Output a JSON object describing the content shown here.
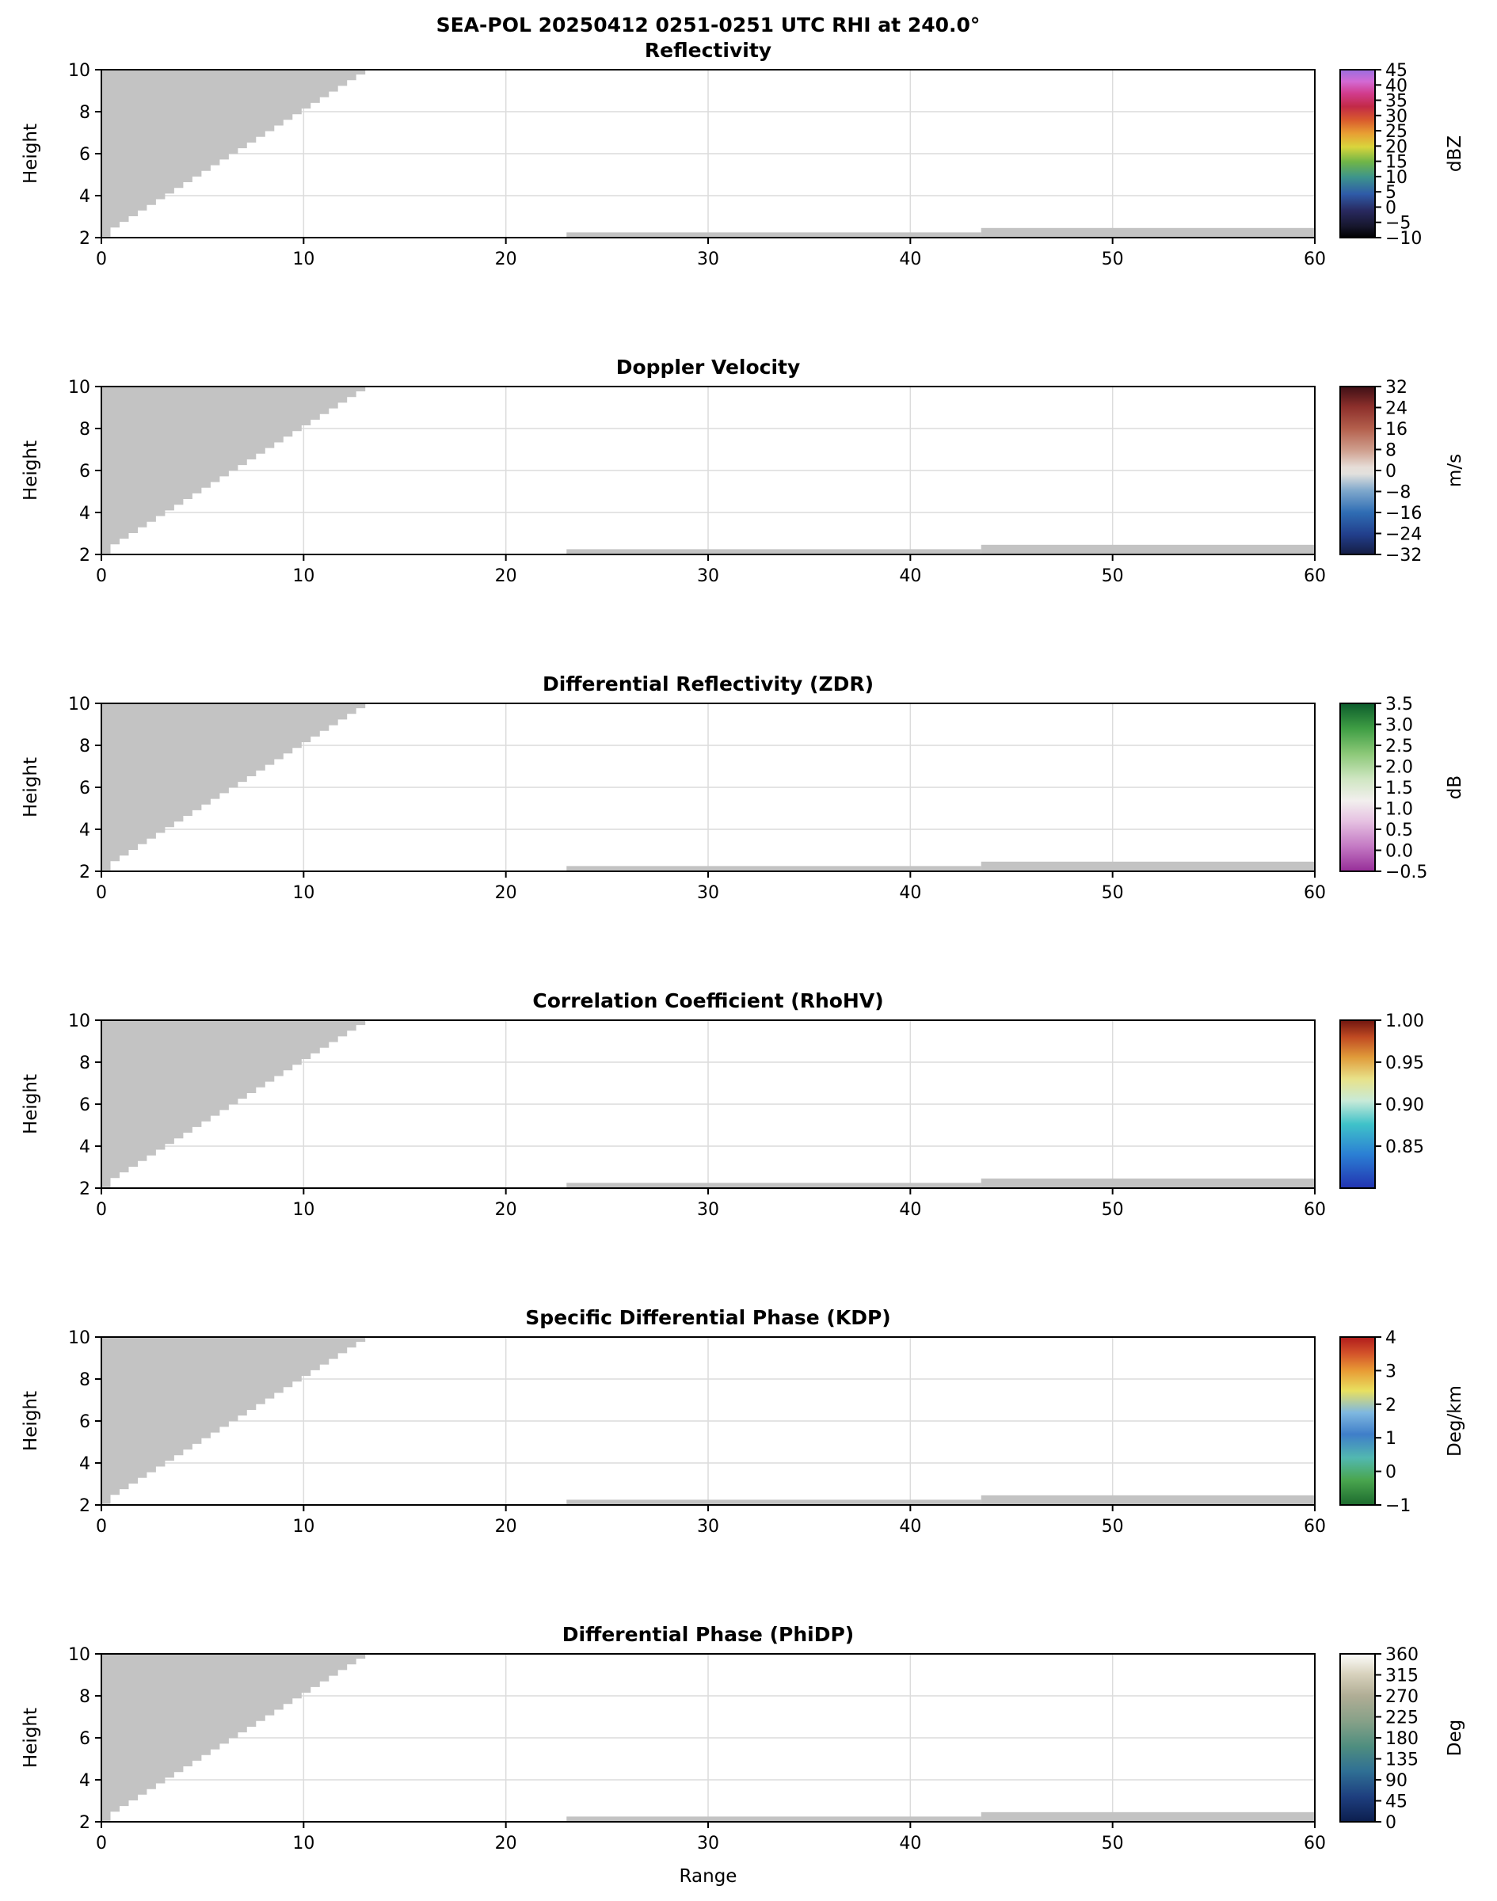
{
  "chart_data": {
    "type": "heatmap",
    "suptitle": "SEA-POL 20250412 0251-0251 UTC RHI at 240.0°",
    "xlabel": "Range",
    "ylabel": "Height",
    "xlim": [
      0,
      60
    ],
    "ylim": [
      2,
      10
    ],
    "xticks": [
      0,
      10,
      20,
      30,
      40,
      50,
      60
    ],
    "yticks": [
      2,
      4,
      6,
      8,
      10
    ],
    "grid": true,
    "note": "Six stacked RHI panels; only gray masked/no-echo regions are visible (upper-left wedge plus two thin low-level strips), no colored echo data present in any panel.",
    "mask": {
      "color": "#c3c3c3",
      "wedge": {
        "x0": 0,
        "dx": 0.45,
        "y_bottom": [
          2.05,
          2.48,
          2.75,
          3.02,
          3.29,
          3.56,
          3.83,
          4.1,
          4.37,
          4.64,
          4.91,
          5.18,
          5.45,
          5.72,
          5.99,
          6.26,
          6.53,
          6.8,
          7.07,
          7.34,
          7.61,
          7.88,
          8.15,
          8.42,
          8.69,
          8.96,
          9.23,
          9.5,
          9.77
        ]
      },
      "strips": [
        {
          "x": [
            23,
            43.5
          ],
          "y": [
            2.02,
            2.25
          ]
        },
        {
          "x": [
            43.5,
            60
          ],
          "y": [
            2.02,
            2.46
          ]
        }
      ]
    },
    "panels": [
      {
        "title": "Reflectivity",
        "units": "dBZ",
        "vmin": -10,
        "vmax": 45,
        "cb_ticks": [
          {
            "label": "45",
            "v": 45
          },
          {
            "label": "40",
            "v": 40
          },
          {
            "label": "35",
            "v": 35
          },
          {
            "label": "30",
            "v": 30
          },
          {
            "label": "25",
            "v": 25
          },
          {
            "label": "20",
            "v": 20
          },
          {
            "label": "15",
            "v": 15
          },
          {
            "label": "10",
            "v": 10
          },
          {
            "label": "5",
            "v": 5
          },
          {
            "label": "0",
            "v": 0
          },
          {
            "label": "−5",
            "v": -5
          },
          {
            "label": "−10",
            "v": -10
          }
        ],
        "cmap": [
          [
            0.0,
            "#000000"
          ],
          [
            0.07,
            "#17172e"
          ],
          [
            0.16,
            "#28295f"
          ],
          [
            0.26,
            "#2f5ba8"
          ],
          [
            0.36,
            "#3d948c"
          ],
          [
            0.45,
            "#6fb548"
          ],
          [
            0.54,
            "#d9d53c"
          ],
          [
            0.62,
            "#e89f33"
          ],
          [
            0.7,
            "#d95b2d"
          ],
          [
            0.78,
            "#c22a47"
          ],
          [
            0.86,
            "#d23c8e"
          ],
          [
            0.93,
            "#d36ad4"
          ],
          [
            1.0,
            "#9a6ee0"
          ]
        ]
      },
      {
        "title": "Doppler Velocity",
        "units": "m/s",
        "vmin": -32,
        "vmax": 32,
        "cb_ticks": [
          {
            "label": "32",
            "v": 32
          },
          {
            "label": "24",
            "v": 24
          },
          {
            "label": "16",
            "v": 16
          },
          {
            "label": "8",
            "v": 8
          },
          {
            "label": "0",
            "v": 0
          },
          {
            "label": "−8",
            "v": -8
          },
          {
            "label": "−16",
            "v": -16
          },
          {
            "label": "−24",
            "v": -24
          },
          {
            "label": "−32",
            "v": -32
          }
        ],
        "cmap": [
          [
            0.0,
            "#151d44"
          ],
          [
            0.12,
            "#223f8c"
          ],
          [
            0.25,
            "#2f6db4"
          ],
          [
            0.38,
            "#7fa8cc"
          ],
          [
            0.48,
            "#e2e0dd"
          ],
          [
            0.52,
            "#e6ddd7"
          ],
          [
            0.62,
            "#cf9f8e"
          ],
          [
            0.75,
            "#b35f4c"
          ],
          [
            0.88,
            "#8c2f2b"
          ],
          [
            1.0,
            "#3e0f15"
          ]
        ]
      },
      {
        "title": "Differential Reflectivity (ZDR)",
        "units": "dB",
        "vmin": -0.5,
        "vmax": 3.5,
        "cb_ticks": [
          {
            "label": "3.5",
            "v": 3.5
          },
          {
            "label": "3.0",
            "v": 3.0
          },
          {
            "label": "2.5",
            "v": 2.5
          },
          {
            "label": "2.0",
            "v": 2.0
          },
          {
            "label": "1.5",
            "v": 1.5
          },
          {
            "label": "1.0",
            "v": 1.0
          },
          {
            "label": "0.5",
            "v": 0.5
          },
          {
            "label": "0.0",
            "v": 0.0
          },
          {
            "label": "−0.5",
            "v": -0.5
          }
        ],
        "cmap": [
          [
            0.0,
            "#962d98"
          ],
          [
            0.15,
            "#c47ac4"
          ],
          [
            0.3,
            "#e6c2e2"
          ],
          [
            0.42,
            "#f2efee"
          ],
          [
            0.55,
            "#cfe6c2"
          ],
          [
            0.7,
            "#8cc878"
          ],
          [
            0.85,
            "#3f9e44"
          ],
          [
            1.0,
            "#0c5c2c"
          ]
        ]
      },
      {
        "title": "Correlation Coefficient (RhoHV)",
        "units": "",
        "vmin": 0.8,
        "vmax": 1.0,
        "cb_ticks": [
          {
            "label": "1.00",
            "v": 1.0
          },
          {
            "label": "0.95",
            "v": 0.95
          },
          {
            "label": "0.90",
            "v": 0.9
          },
          {
            "label": "0.85",
            "v": 0.85
          }
        ],
        "cmap": [
          [
            0.0,
            "#2233b0"
          ],
          [
            0.2,
            "#2b7fd4"
          ],
          [
            0.38,
            "#3fc2c9"
          ],
          [
            0.52,
            "#c8ead8"
          ],
          [
            0.65,
            "#e8e28a"
          ],
          [
            0.78,
            "#e09b3a"
          ],
          [
            0.9,
            "#c04a22"
          ],
          [
            1.0,
            "#701610"
          ]
        ]
      },
      {
        "title": "Specific Differential Phase (KDP)",
        "units": "Deg/km",
        "vmin": -1,
        "vmax": 4,
        "cb_ticks": [
          {
            "label": "4",
            "v": 4
          },
          {
            "label": "3",
            "v": 3
          },
          {
            "label": "2",
            "v": 2
          },
          {
            "label": "1",
            "v": 1
          },
          {
            "label": "0",
            "v": 0
          },
          {
            "label": "−1",
            "v": -1
          }
        ],
        "cmap": [
          [
            0.0,
            "#1d6b2e"
          ],
          [
            0.15,
            "#4aa64f"
          ],
          [
            0.28,
            "#52b8b0"
          ],
          [
            0.42,
            "#3f7ec9"
          ],
          [
            0.55,
            "#7fb8e0"
          ],
          [
            0.68,
            "#e8e060"
          ],
          [
            0.8,
            "#e89b35"
          ],
          [
            0.9,
            "#d4542a"
          ],
          [
            1.0,
            "#b01c1c"
          ]
        ]
      },
      {
        "title": "Differential Phase (PhiDP)",
        "units": "Deg",
        "vmin": 0,
        "vmax": 360,
        "cb_ticks": [
          {
            "label": "360",
            "v": 360
          },
          {
            "label": "315",
            "v": 315
          },
          {
            "label": "270",
            "v": 270
          },
          {
            "label": "225",
            "v": 225
          },
          {
            "label": "180",
            "v": 180
          },
          {
            "label": "135",
            "v": 135
          },
          {
            "label": "90",
            "v": 90
          },
          {
            "label": "45",
            "v": 45
          },
          {
            "label": "0",
            "v": 0
          }
        ],
        "cmap": [
          [
            0.0,
            "#0c1e4e"
          ],
          [
            0.15,
            "#1e3f7f"
          ],
          [
            0.3,
            "#2f6f94"
          ],
          [
            0.45,
            "#4f8e7f"
          ],
          [
            0.6,
            "#87a188"
          ],
          [
            0.75,
            "#b0ad95"
          ],
          [
            0.88,
            "#d8d2bd"
          ],
          [
            1.0,
            "#fdfdfb"
          ]
        ]
      }
    ]
  }
}
